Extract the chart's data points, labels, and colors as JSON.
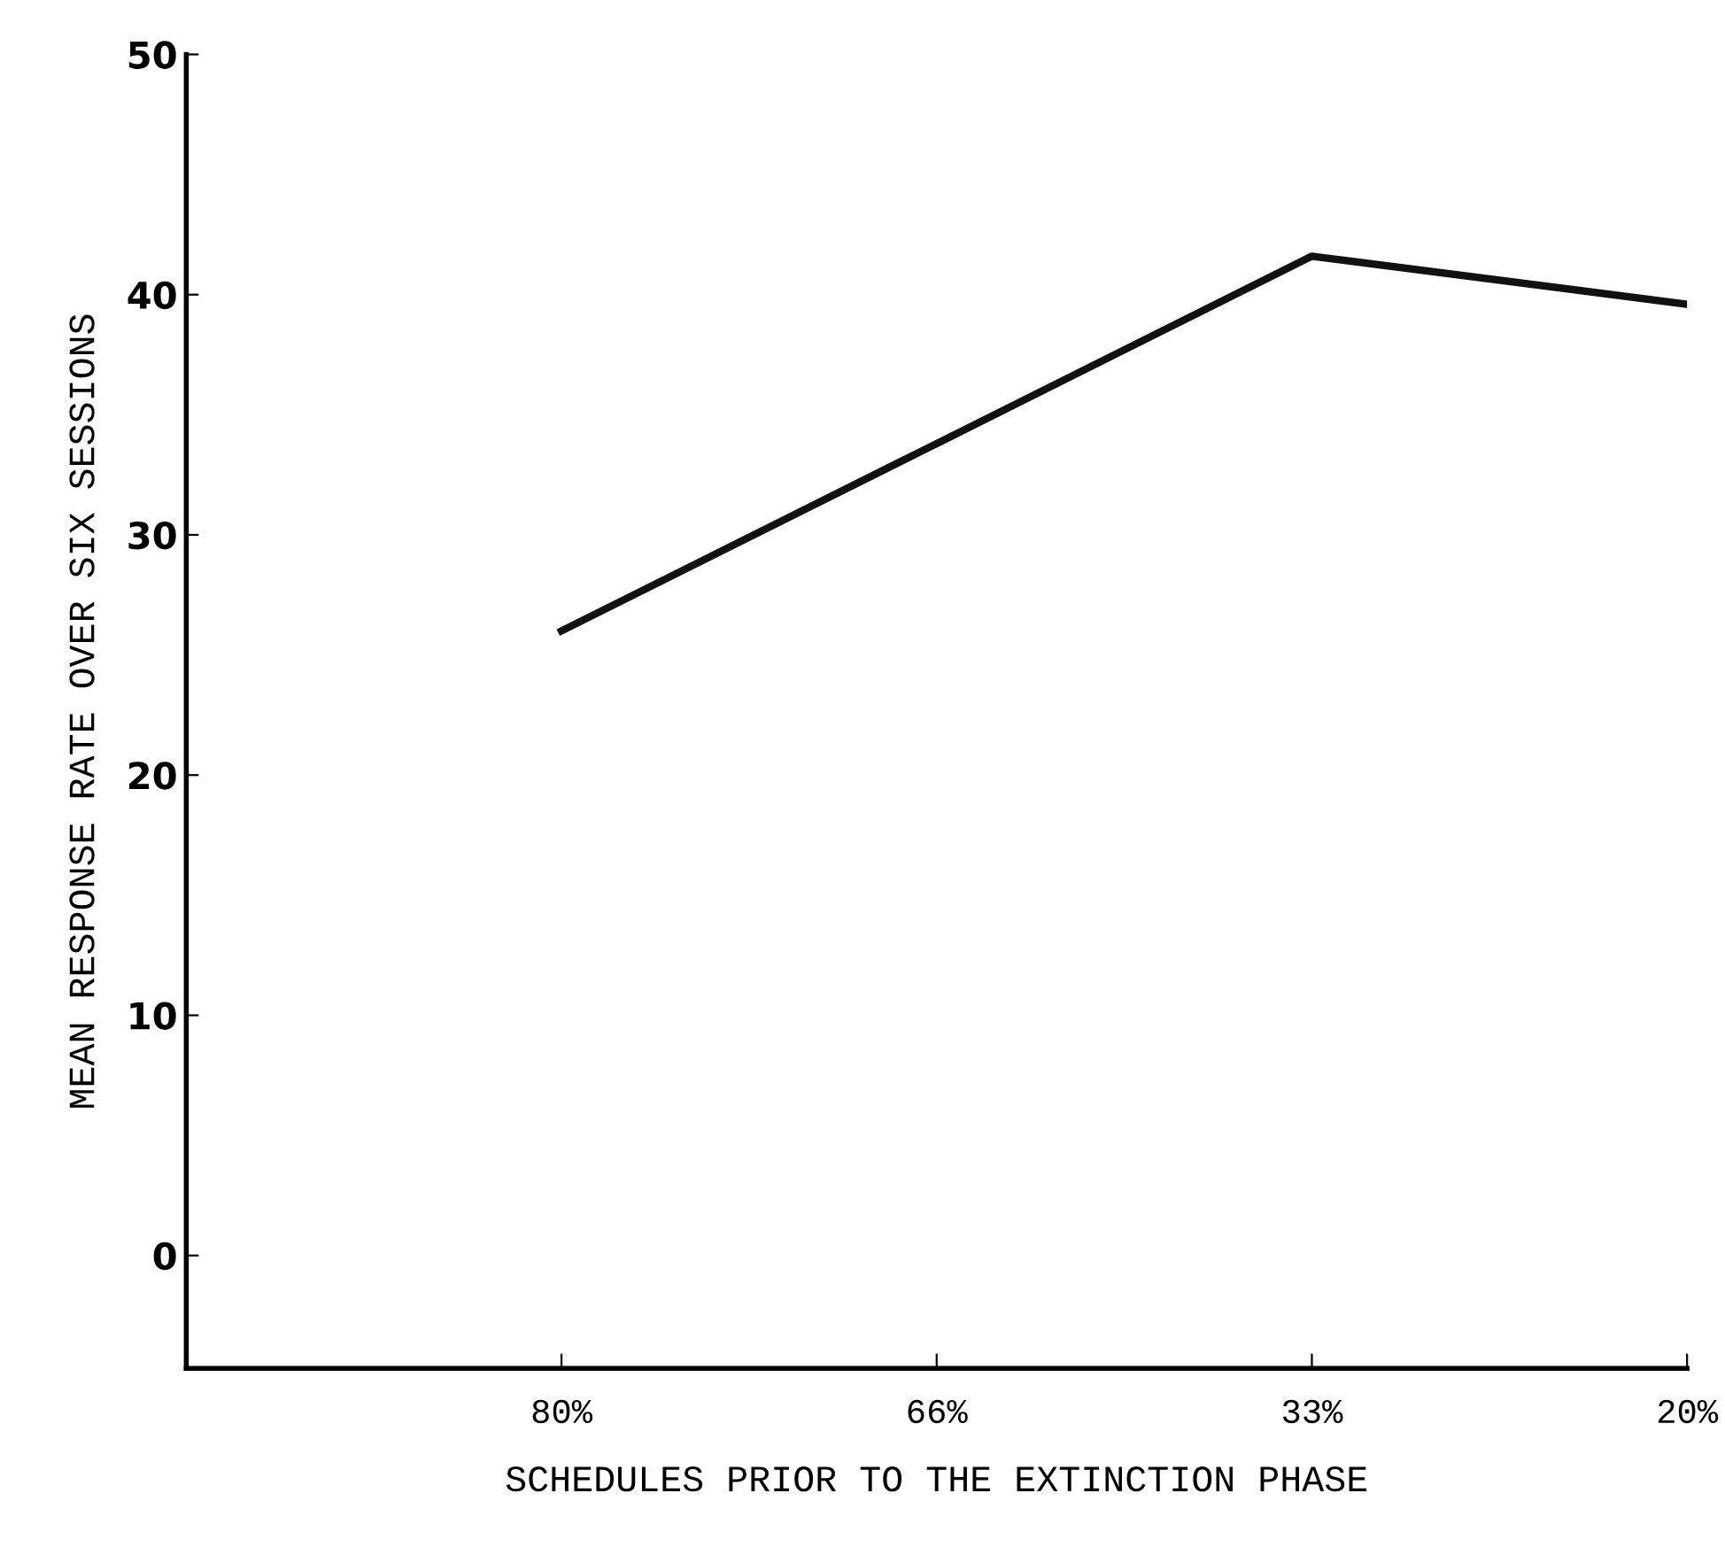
{
  "chart_data": {
    "type": "line",
    "xlabel": "SCHEDULES PRIOR TO THE EXTINCTION PHASE",
    "ylabel": "MEAN RESPONSE RATE OVER SIX SESSIONS",
    "categories": [
      "80%",
      "66%",
      "33%",
      "20%"
    ],
    "series": [
      {
        "color": "#111111",
        "values": [
          26.0,
          33.8,
          41.6,
          39.6
        ]
      }
    ],
    "ylim": [
      -4.7,
      50
    ],
    "yticks": [
      0,
      10,
      20,
      30,
      40,
      50
    ],
    "grid": false,
    "legend": false,
    "marker": "none",
    "line_style": "solid"
  }
}
